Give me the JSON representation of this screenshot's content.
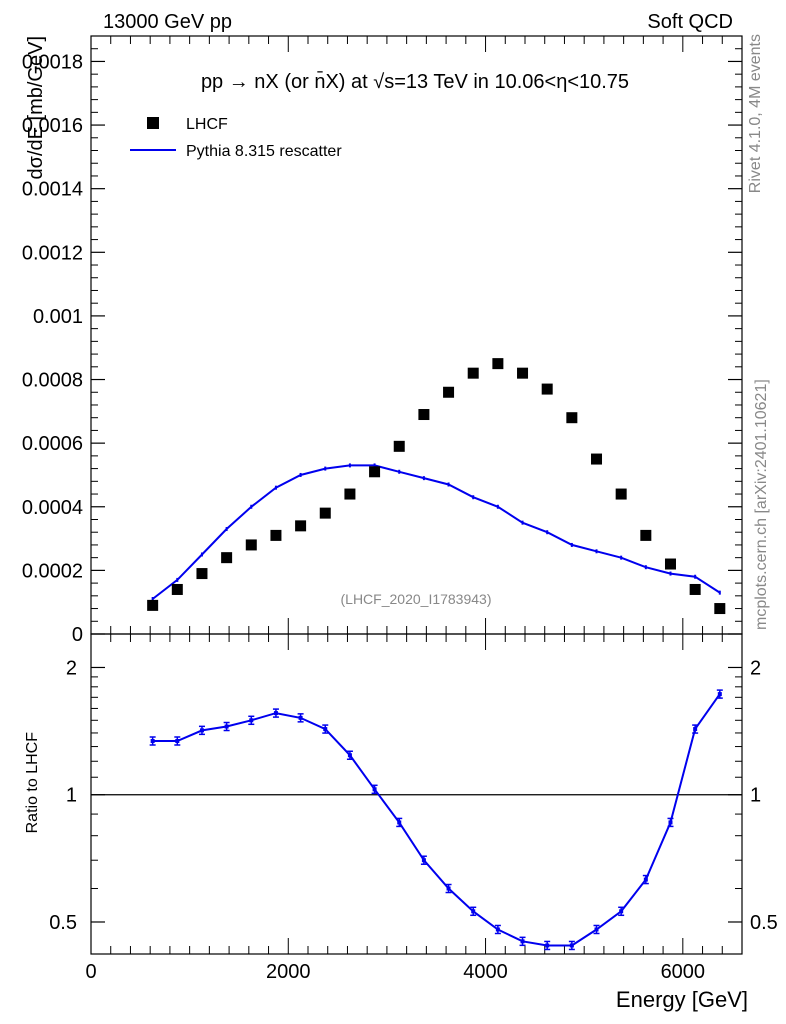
{
  "header": {
    "left": "13000 GeV pp",
    "right": "Soft QCD"
  },
  "side": {
    "rivet": "Rivet 4.1.0,  4M events",
    "mcplots": "mcplots.cern.ch [arXiv:2401.10621]"
  },
  "chart_data": [
    {
      "type": "scatter",
      "panel": "main",
      "title": "pp → nX (or n̄X) at √s=13 TeV in 10.06<η<10.75",
      "watermark": "(LHCF_2020_I1783943)",
      "ylabel": "dσ/dE [mb/GeV]",
      "xlabel": "",
      "xlim": [
        0,
        6600
      ],
      "ylim": [
        0,
        0.00188
      ],
      "yticks": [
        0,
        0.0002,
        0.0004,
        0.0006,
        0.0008,
        0.001,
        0.0012,
        0.0014,
        0.0016,
        0.0018
      ],
      "ytick_labels": [
        "0",
        "0.0002",
        "0.0004",
        "0.0006",
        "0.0008",
        "0.001",
        "0.0012",
        "0.0014",
        "0.0016",
        "0.0018"
      ],
      "legend": {
        "placement": "top-left",
        "entries": [
          "LHCF",
          "Pythia 8.315 rescatter"
        ]
      },
      "x": [
        625,
        875,
        1125,
        1375,
        1625,
        1875,
        2125,
        2375,
        2625,
        2875,
        3125,
        3375,
        3625,
        3875,
        4125,
        4375,
        4625,
        4875,
        5125,
        5375,
        5625,
        5875,
        6125,
        6375
      ],
      "series": [
        {
          "name": "LHCF",
          "marker": "square",
          "color": "#000000",
          "values": [
            9e-05,
            0.00014,
            0.00019,
            0.00024,
            0.00028,
            0.00031,
            0.00034,
            0.00038,
            0.00044,
            0.00051,
            0.00059,
            0.00069,
            0.00076,
            0.00082,
            0.00085,
            0.00082,
            0.00077,
            0.00068,
            0.00055,
            0.00044,
            0.00031,
            0.00022,
            0.00014,
            8e-05
          ]
        },
        {
          "name": "Pythia 8.315 rescatter",
          "marker": "line",
          "color": "#0000ee",
          "values": [
            0.00011,
            0.00017,
            0.00025,
            0.00033,
            0.0004,
            0.00046,
            0.0005,
            0.00052,
            0.00053,
            0.00053,
            0.00051,
            0.00049,
            0.00047,
            0.00043,
            0.0004,
            0.00035,
            0.00032,
            0.00028,
            0.00026,
            0.00024,
            0.00021,
            0.00019,
            0.00018,
            0.00013
          ]
        }
      ]
    },
    {
      "type": "line",
      "panel": "ratio",
      "ylabel": "Ratio to LHCF",
      "xlabel": "Energy [GeV]",
      "xlim": [
        0,
        6600
      ],
      "ylim": [
        0.42,
        2.4
      ],
      "log_y": true,
      "yticks": [
        0.5,
        1,
        2
      ],
      "ytick_labels": [
        "0.5",
        "1",
        "2"
      ],
      "xticks": [
        0,
        2000,
        4000,
        6000
      ],
      "xtick_labels": [
        "0",
        "2000",
        "4000",
        "6000"
      ],
      "reference_line": 1,
      "x": [
        625,
        875,
        1125,
        1375,
        1625,
        1875,
        2125,
        2375,
        2625,
        2875,
        3125,
        3375,
        3625,
        3875,
        4125,
        4375,
        4625,
        4875,
        5125,
        5375,
        5625,
        5875,
        6125,
        6375
      ],
      "series": [
        {
          "name": "Pythia 8.315 rescatter",
          "color": "#0000ee",
          "values": [
            1.34,
            1.34,
            1.42,
            1.45,
            1.5,
            1.56,
            1.52,
            1.43,
            1.24,
            1.03,
            0.86,
            0.7,
            0.6,
            0.53,
            0.48,
            0.45,
            0.44,
            0.44,
            0.48,
            0.53,
            0.63,
            0.86,
            1.43,
            1.73
          ]
        }
      ]
    }
  ]
}
